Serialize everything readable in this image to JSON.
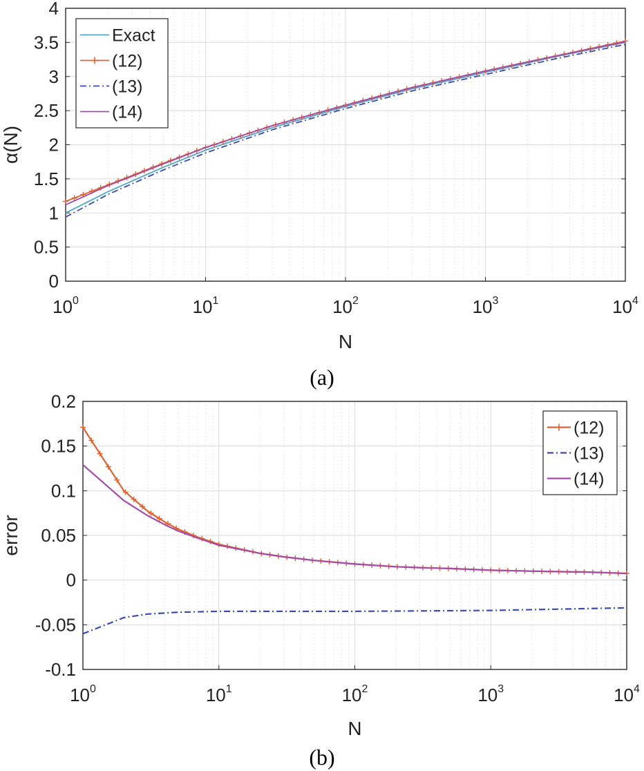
{
  "captions": {
    "a": "(a)",
    "b": "(b)"
  },
  "colors": {
    "exact": "#4EA6C8",
    "eq12": "#E0612D",
    "eq13": "#3A4BB0",
    "eq14": "#A24BA8"
  },
  "chart_data": [
    {
      "type": "line",
      "xscale": "log",
      "xlim": [
        1,
        10000
      ],
      "ylim": [
        0,
        4
      ],
      "xlabel": "N",
      "ylabel": "α(N)",
      "xticks": [
        {
          "base": "10",
          "exp": "0"
        },
        {
          "base": "10",
          "exp": "1"
        },
        {
          "base": "10",
          "exp": "2"
        },
        {
          "base": "10",
          "exp": "3"
        },
        {
          "base": "10",
          "exp": "4"
        }
      ],
      "yticks": [
        "0",
        "0.5",
        "1",
        "1.5",
        "2",
        "2.5",
        "3",
        "3.5",
        "4"
      ],
      "legend_position": "top-left",
      "series": [
        {
          "name": "Exact",
          "style": "solid",
          "marker": "none",
          "x": [
            1,
            2,
            3,
            5,
            10,
            30,
            100,
            300,
            1000,
            3000,
            10000
          ],
          "y": [
            1.0,
            1.31,
            1.47,
            1.67,
            1.92,
            2.25,
            2.56,
            2.82,
            3.06,
            3.28,
            3.5
          ]
        },
        {
          "name": "(12)",
          "style": "solid",
          "marker": "plus",
          "x": [
            1,
            2,
            3,
            5,
            10,
            30,
            100,
            300,
            1000,
            3000,
            10000
          ],
          "y": [
            1.17,
            1.41,
            1.55,
            1.73,
            1.96,
            2.28,
            2.58,
            2.84,
            3.08,
            3.29,
            3.52
          ]
        },
        {
          "name": "(13)",
          "style": "dashdot",
          "marker": "none",
          "x": [
            1,
            2,
            3,
            5,
            10,
            30,
            100,
            300,
            1000,
            3000,
            10000
          ],
          "y": [
            0.94,
            1.27,
            1.43,
            1.63,
            1.88,
            2.22,
            2.53,
            2.79,
            3.03,
            3.25,
            3.47
          ]
        },
        {
          "name": "(14)",
          "style": "solid",
          "marker": "none",
          "x": [
            1,
            2,
            3,
            5,
            10,
            30,
            100,
            300,
            1000,
            3000,
            10000
          ],
          "y": [
            1.12,
            1.4,
            1.54,
            1.72,
            1.96,
            2.28,
            2.58,
            2.84,
            3.08,
            3.29,
            3.51
          ]
        }
      ]
    },
    {
      "type": "line",
      "xscale": "log",
      "xlim": [
        1,
        10000
      ],
      "ylim": [
        -0.1,
        0.2
      ],
      "xlabel": "N",
      "ylabel": "error",
      "xticks": [
        {
          "base": "10",
          "exp": "0"
        },
        {
          "base": "10",
          "exp": "1"
        },
        {
          "base": "10",
          "exp": "2"
        },
        {
          "base": "10",
          "exp": "3"
        },
        {
          "base": "10",
          "exp": "4"
        }
      ],
      "yticks": [
        "-0.1",
        "-0.05",
        "0",
        "0.05",
        "0.1",
        "0.15",
        "0.2"
      ],
      "legend_position": "top-right",
      "series": [
        {
          "name": "(12)",
          "style": "solid",
          "marker": "plus",
          "x": [
            1,
            2,
            3,
            4,
            5,
            7,
            10,
            20,
            30,
            50,
            100,
            200,
            300,
            500,
            1000,
            2000,
            3000,
            5000,
            10000
          ],
          "y": [
            0.171,
            0.1,
            0.077,
            0.065,
            0.057,
            0.048,
            0.04,
            0.03,
            0.026,
            0.022,
            0.018,
            0.015,
            0.014,
            0.013,
            0.011,
            0.01,
            0.0095,
            0.009,
            0.0075
          ]
        },
        {
          "name": "(13)",
          "style": "dashdot",
          "marker": "none",
          "x": [
            1,
            2,
            3,
            5,
            10,
            30,
            100,
            1000,
            10000
          ],
          "y": [
            -0.06,
            -0.042,
            -0.038,
            -0.036,
            -0.035,
            -0.035,
            -0.035,
            -0.034,
            -0.031
          ]
        },
        {
          "name": "(14)",
          "style": "solid",
          "marker": "none",
          "x": [
            1,
            2,
            3,
            4,
            5,
            7,
            10,
            20,
            30,
            50,
            100,
            200,
            300,
            500,
            1000,
            2000,
            3000,
            5000,
            10000
          ],
          "y": [
            0.129,
            0.089,
            0.072,
            0.062,
            0.055,
            0.047,
            0.039,
            0.03,
            0.026,
            0.022,
            0.018,
            0.015,
            0.014,
            0.013,
            0.011,
            0.01,
            0.0095,
            0.009,
            0.0075
          ]
        }
      ]
    }
  ]
}
